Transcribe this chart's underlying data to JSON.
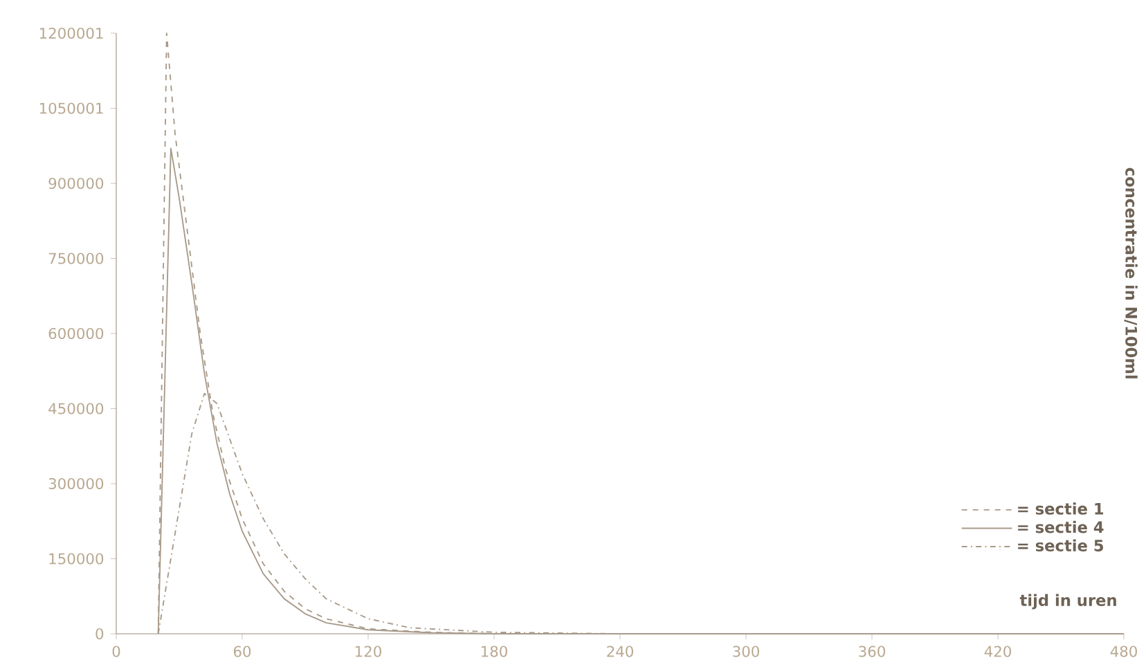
{
  "chart_data": {
    "type": "line",
    "xlabel": "tijd in uren",
    "ylabel": "concentratie in N/100ml",
    "xlim": [
      0,
      480
    ],
    "xticks": [
      0,
      60,
      120,
      180,
      240,
      300,
      360,
      420,
      480
    ],
    "ylim": [
      0,
      1200001
    ],
    "yticks": [
      0,
      150000,
      300000,
      450000,
      600000,
      750000,
      900000,
      1050001,
      1200001
    ],
    "grid": false,
    "legend": "bottom right",
    "marker": "none",
    "series": [
      {
        "name": "= sectie 1",
        "color": "#a89a8a",
        "line_style": "dashed",
        "x": [
          20,
          24,
          28,
          34,
          40,
          46,
          52,
          60,
          70,
          80,
          90,
          100,
          120,
          150,
          180,
          480
        ],
        "values": [
          0,
          1200000,
          1000000,
          800000,
          600000,
          440000,
          330000,
          230000,
          140000,
          85000,
          50000,
          30000,
          10000,
          3000,
          0,
          0
        ]
      },
      {
        "name": "= sectie 4",
        "color": "#a89a8a",
        "line_style": "solid",
        "x": [
          20,
          26,
          30,
          36,
          42,
          48,
          54,
          60,
          70,
          80,
          90,
          100,
          120,
          150,
          180,
          480
        ],
        "values": [
          0,
          970000,
          870000,
          700000,
          520000,
          380000,
          280000,
          205000,
          120000,
          70000,
          40000,
          22000,
          8000,
          2000,
          0,
          0
        ]
      },
      {
        "name": "= sectie 5",
        "color": "#a89a8a",
        "line_style": "dashdotted",
        "x": [
          20,
          28,
          36,
          42,
          48,
          54,
          60,
          70,
          80,
          90,
          100,
          120,
          140,
          180,
          240,
          480
        ],
        "values": [
          0,
          200000,
          400000,
          480000,
          460000,
          390000,
          320000,
          230000,
          160000,
          110000,
          70000,
          30000,
          12000,
          3000,
          0,
          0
        ]
      }
    ]
  }
}
